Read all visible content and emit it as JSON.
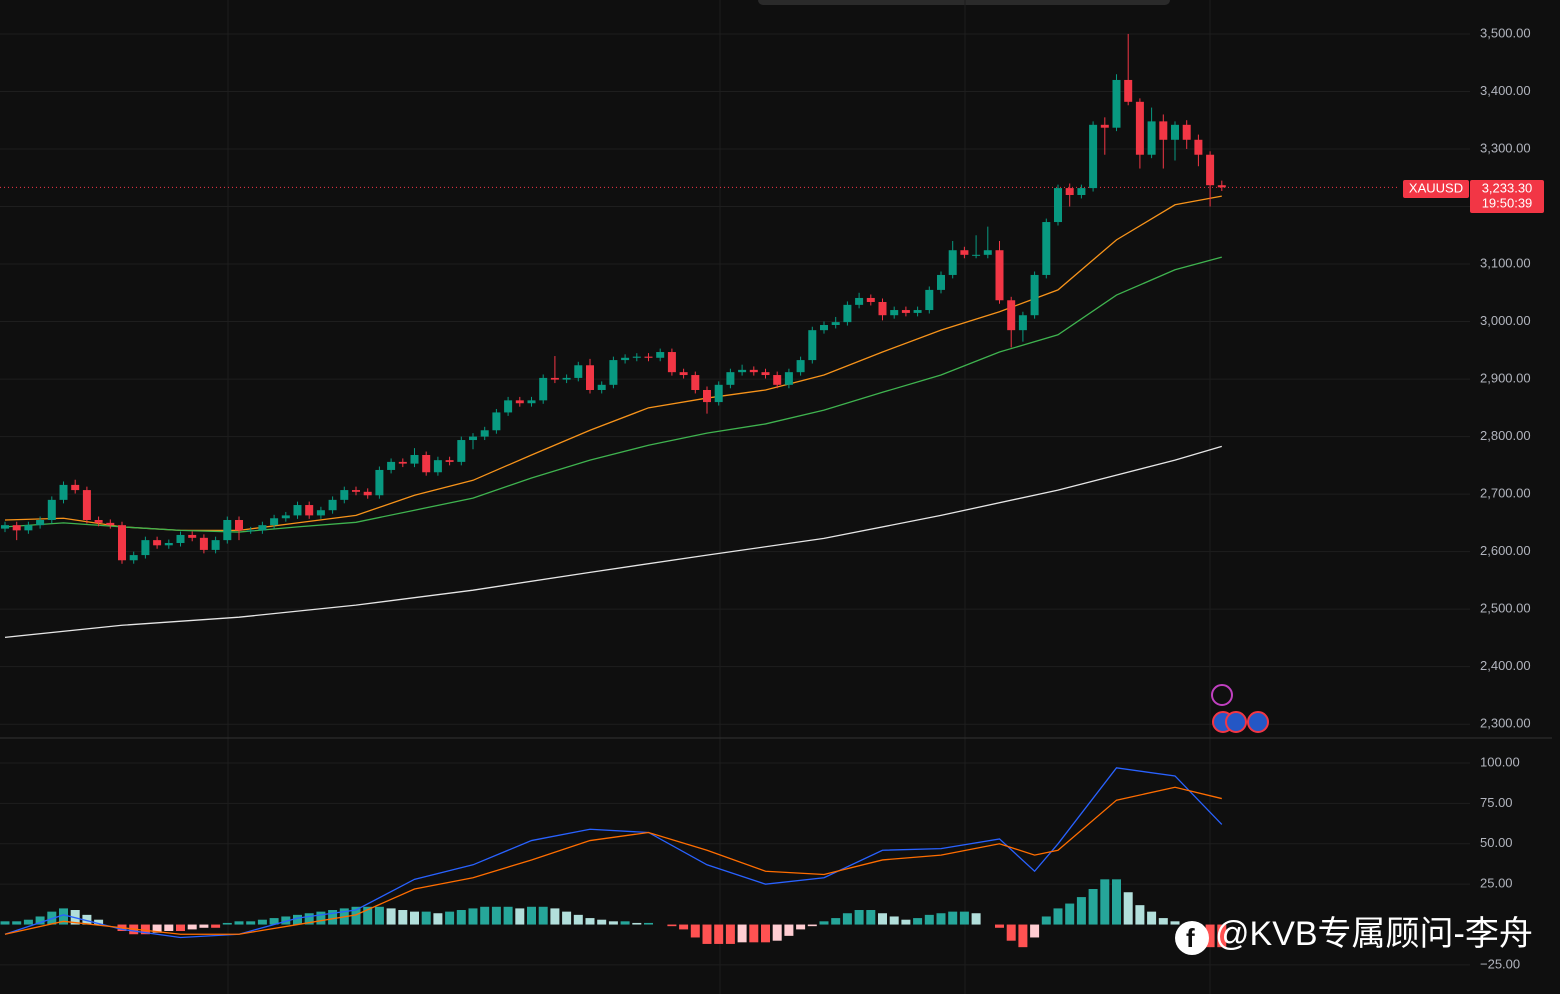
{
  "chart_data": [
    {
      "type": "candlestick",
      "symbol": "XAUUSD",
      "up_color": "#089981",
      "down_color": "#f23645",
      "ylim": [
        2276,
        3559
      ],
      "yticks": [
        {
          "value": 2300,
          "label": "2,300.00"
        },
        {
          "value": 2400,
          "label": "2,400.00"
        },
        {
          "value": 2500,
          "label": "2,500.00"
        },
        {
          "value": 2600,
          "label": "2,600.00"
        },
        {
          "value": 2700,
          "label": "2,700.00"
        },
        {
          "value": 2800,
          "label": "2,800.00"
        },
        {
          "value": 2900,
          "label": "2,900.00"
        },
        {
          "value": 3000,
          "label": "3,000.00"
        },
        {
          "value": 3100,
          "label": "3,100.00"
        },
        {
          "value": 3200,
          "label": "3,200.00"
        },
        {
          "value": 3300,
          "label": "3,300.00"
        },
        {
          "value": 3400,
          "label": "3,400.00"
        },
        {
          "value": 3500,
          "label": "3,500.00"
        }
      ],
      "grid": true,
      "last_price": {
        "value": 3233.3,
        "label": "3,233.30"
      },
      "countdown": "19:50:39",
      "ohlc": [
        [
          2640,
          2652,
          2634,
          2646
        ],
        [
          2646,
          2652,
          2620,
          2637
        ],
        [
          2637,
          2652,
          2631,
          2646
        ],
        [
          2646,
          2661,
          2640,
          2655
        ],
        [
          2655,
          2696,
          2649,
          2690
        ],
        [
          2690,
          2722,
          2684,
          2716
        ],
        [
          2716,
          2725,
          2701,
          2707
        ],
        [
          2707,
          2713,
          2649,
          2655
        ],
        [
          2655,
          2661,
          2644,
          2650
        ],
        [
          2650,
          2656,
          2640,
          2646
        ],
        [
          2646,
          2652,
          2579,
          2585
        ],
        [
          2585,
          2600,
          2579,
          2594
        ],
        [
          2594,
          2626,
          2588,
          2620
        ],
        [
          2620,
          2626,
          2605,
          2611
        ],
        [
          2611,
          2621,
          2605,
          2615
        ],
        [
          2615,
          2635,
          2609,
          2629
        ],
        [
          2629,
          2635,
          2618,
          2624
        ],
        [
          2624,
          2630,
          2597,
          2603
        ],
        [
          2603,
          2626,
          2597,
          2620
        ],
        [
          2620,
          2661,
          2614,
          2655
        ],
        [
          2655,
          2661,
          2620,
          2637
        ],
        [
          2637,
          2643,
          2631,
          2637
        ],
        [
          2637,
          2652,
          2631,
          2646
        ],
        [
          2646,
          2664,
          2640,
          2658
        ],
        [
          2658,
          2669,
          2652,
          2663
        ],
        [
          2663,
          2687,
          2657,
          2681
        ],
        [
          2681,
          2687,
          2657,
          2663
        ],
        [
          2663,
          2678,
          2657,
          2672
        ],
        [
          2672,
          2696,
          2666,
          2690
        ],
        [
          2690,
          2713,
          2684,
          2707
        ],
        [
          2707,
          2713,
          2698,
          2704
        ],
        [
          2704,
          2710,
          2692,
          2698
        ],
        [
          2698,
          2748,
          2692,
          2742
        ],
        [
          2742,
          2762,
          2736,
          2756
        ],
        [
          2756,
          2762,
          2747,
          2753
        ],
        [
          2753,
          2780,
          2747,
          2768
        ],
        [
          2768,
          2774,
          2732,
          2738
        ],
        [
          2738,
          2765,
          2732,
          2759
        ],
        [
          2759,
          2765,
          2750,
          2756
        ],
        [
          2756,
          2800,
          2750,
          2794
        ],
        [
          2794,
          2806,
          2778,
          2800
        ],
        [
          2800,
          2817,
          2794,
          2811
        ],
        [
          2811,
          2848,
          2805,
          2842
        ],
        [
          2842,
          2869,
          2836,
          2863
        ],
        [
          2863,
          2869,
          2852,
          2858
        ],
        [
          2858,
          2869,
          2852,
          2863
        ],
        [
          2863,
          2908,
          2857,
          2902
        ],
        [
          2902,
          2940,
          2893,
          2899
        ],
        [
          2899,
          2908,
          2893,
          2902
        ],
        [
          2902,
          2930,
          2896,
          2924
        ],
        [
          2924,
          2935,
          2875,
          2881
        ],
        [
          2881,
          2896,
          2875,
          2890
        ],
        [
          2890,
          2939,
          2884,
          2933
        ],
        [
          2933,
          2943,
          2927,
          2937
        ],
        [
          2937,
          2945,
          2931,
          2939
        ],
        [
          2939,
          2945,
          2931,
          2937
        ],
        [
          2937,
          2953,
          2931,
          2947
        ],
        [
          2947,
          2953,
          2906,
          2912
        ],
        [
          2912,
          2918,
          2901,
          2907
        ],
        [
          2907,
          2913,
          2875,
          2881
        ],
        [
          2881,
          2887,
          2840,
          2860
        ],
        [
          2860,
          2896,
          2854,
          2890
        ],
        [
          2890,
          2918,
          2884,
          2912
        ],
        [
          2912,
          2925,
          2906,
          2916
        ],
        [
          2916,
          2922,
          2906,
          2912
        ],
        [
          2912,
          2918,
          2901,
          2907
        ],
        [
          2907,
          2913,
          2884,
          2890
        ],
        [
          2890,
          2918,
          2884,
          2912
        ],
        [
          2912,
          2939,
          2906,
          2933
        ],
        [
          2933,
          2991,
          2927,
          2985
        ],
        [
          2985,
          3000,
          2979,
          2994
        ],
        [
          2994,
          3008,
          2988,
          2999
        ],
        [
          2999,
          3035,
          2993,
          3029
        ],
        [
          3029,
          3050,
          3023,
          3041
        ],
        [
          3041,
          3047,
          3028,
          3034
        ],
        [
          3034,
          3040,
          3002,
          3011
        ],
        [
          3011,
          3026,
          3005,
          3020
        ],
        [
          3020,
          3026,
          3009,
          3015
        ],
        [
          3015,
          3026,
          3009,
          3020
        ],
        [
          3020,
          3061,
          3014,
          3055
        ],
        [
          3055,
          3087,
          3049,
          3081
        ],
        [
          3081,
          3140,
          3075,
          3124
        ],
        [
          3124,
          3130,
          3110,
          3116
        ],
        [
          3116,
          3150,
          3110,
          3116
        ],
        [
          3116,
          3165,
          3110,
          3124
        ],
        [
          3124,
          3140,
          3031,
          3037
        ],
        [
          3037,
          3043,
          2955,
          2985
        ],
        [
          2985,
          3017,
          2965,
          3011
        ],
        [
          3011,
          3087,
          3005,
          3081
        ],
        [
          3081,
          3179,
          3075,
          3173
        ],
        [
          3173,
          3238,
          3167,
          3232
        ],
        [
          3232,
          3240,
          3200,
          3220
        ],
        [
          3220,
          3238,
          3214,
          3232
        ],
        [
          3232,
          3348,
          3226,
          3342
        ],
        [
          3342,
          3355,
          3290,
          3337
        ],
        [
          3337,
          3430,
          3331,
          3420
        ],
        [
          3420,
          3500,
          3376,
          3382
        ],
        [
          3382,
          3388,
          3266,
          3290
        ],
        [
          3290,
          3372,
          3284,
          3348
        ],
        [
          3348,
          3360,
          3266,
          3316
        ],
        [
          3316,
          3348,
          3280,
          3342
        ],
        [
          3342,
          3350,
          3300,
          3316
        ],
        [
          3316,
          3325,
          3270,
          3290
        ],
        [
          3290,
          3296,
          3200,
          3237
        ],
        [
          3237,
          3245,
          3227,
          3233.3
        ]
      ],
      "moving_averages": [
        {
          "color": "#f7931a",
          "x": [
            0,
            5,
            10,
            15,
            20,
            25,
            30,
            35,
            40,
            45,
            50,
            55,
            60,
            65,
            70,
            75,
            80,
            85,
            90,
            95,
            100,
            104
          ],
          "values": [
            2655,
            2658,
            2643,
            2637,
            2637,
            2650,
            2663,
            2698,
            2724,
            2768,
            2811,
            2850,
            2867,
            2881,
            2907,
            2947,
            2985,
            3017,
            3055,
            3142,
            3203,
            3218
          ]
        },
        {
          "color": "#3fb34f",
          "x": [
            0,
            5,
            10,
            15,
            20,
            25,
            30,
            35,
            40,
            45,
            50,
            55,
            60,
            65,
            70,
            75,
            80,
            85,
            90,
            95,
            100,
            104
          ],
          "values": [
            2643,
            2650,
            2643,
            2637,
            2634,
            2643,
            2651,
            2672,
            2693,
            2728,
            2759,
            2785,
            2806,
            2822,
            2846,
            2877,
            2907,
            2947,
            2977,
            3046,
            3090,
            3112
          ]
        },
        {
          "color": "#e6e6e6",
          "x": [
            0,
            10,
            20,
            30,
            40,
            50,
            60,
            70,
            80,
            90,
            100,
            104
          ],
          "values": [
            2451,
            2472,
            2486,
            2507,
            2533,
            2564,
            2594,
            2623,
            2663,
            2707,
            2759,
            2783
          ]
        }
      ]
    },
    {
      "type": "macd",
      "ylim": [
        -43,
        115.5
      ],
      "yticks": [
        {
          "value": -25,
          "label": "−25.00"
        },
        {
          "value": 25,
          "label": "25.00"
        },
        {
          "value": 50,
          "label": "50.00"
        },
        {
          "value": 75,
          "label": "75.00"
        },
        {
          "value": 100,
          "label": "100.00"
        }
      ],
      "histogram_colors": {
        "up_rising": "#26a69a",
        "up_falling": "#b2dfdb",
        "down_falling": "#ff5252",
        "down_rising": "#ffcdd2"
      },
      "histogram": [
        2,
        2,
        3,
        5,
        8,
        10,
        9,
        6,
        3,
        0,
        -4,
        -6,
        -6,
        -5,
        -4,
        -4,
        -3,
        -2,
        -2,
        1,
        2,
        2,
        3,
        4,
        5,
        6,
        7,
        8,
        9,
        10,
        11,
        11,
        11,
        10,
        9,
        8,
        8,
        7,
        8,
        9,
        10,
        11,
        11,
        11,
        10,
        11,
        11,
        10,
        8,
        6,
        4,
        3,
        2,
        2,
        1,
        1,
        0,
        -1,
        -3,
        -8,
        -12,
        -12,
        -12,
        -11,
        -11,
        -11,
        -10,
        -7,
        -3,
        -1,
        2,
        4,
        7,
        9,
        9,
        7,
        5,
        3,
        4,
        6,
        7,
        8,
        8,
        7,
        0,
        -2,
        -10,
        -14,
        -8,
        5,
        10,
        13,
        17,
        22,
        28,
        28,
        20,
        12,
        8,
        4,
        2,
        -4,
        -10,
        -14,
        -14
      ],
      "lines": [
        {
          "color": "#2962ff",
          "x": [
            0,
            5,
            10,
            15,
            20,
            25,
            30,
            35,
            40,
            45,
            50,
            55,
            60,
            65,
            70,
            75,
            80,
            85,
            88,
            90,
            95,
            100,
            104
          ],
          "values": [
            -6,
            6,
            -3,
            -8,
            -6,
            4,
            9,
            28,
            37,
            52,
            59,
            57,
            37,
            25,
            29,
            46,
            47,
            53,
            33,
            50,
            97,
            92,
            62
          ]
        },
        {
          "color": "#ff6d00",
          "x": [
            0,
            5,
            10,
            15,
            20,
            25,
            30,
            35,
            40,
            45,
            50,
            55,
            60,
            65,
            70,
            75,
            80,
            85,
            88,
            90,
            95,
            100,
            104
          ],
          "values": [
            -6,
            2,
            -2,
            -6,
            -6,
            0,
            6,
            22,
            29,
            40,
            52,
            57,
            46,
            33,
            31,
            40,
            43,
            50,
            43,
            46,
            77,
            85,
            78
          ]
        }
      ]
    }
  ],
  "watermark": "@KVB专属顾问-李舟"
}
